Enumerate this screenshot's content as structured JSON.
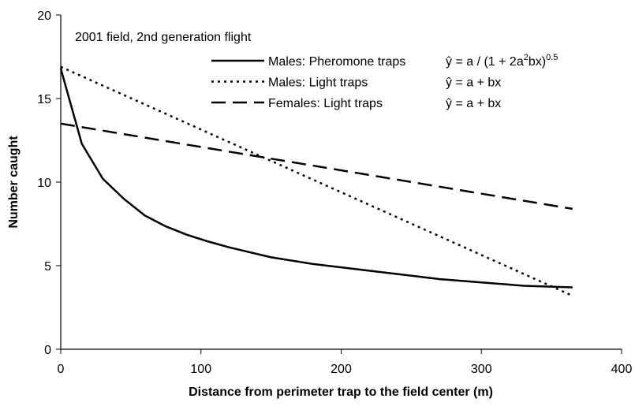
{
  "chart_data": {
    "type": "line",
    "subtitle": "2001 field, 2nd generation flight",
    "x_label": "Distance from perimeter trap to the field center (m)",
    "y_label": "Number caught",
    "xlim": [
      0,
      400
    ],
    "xticks": [
      0,
      100,
      200,
      300,
      400
    ],
    "ylim": [
      0,
      20
    ],
    "yticks": [
      0,
      5,
      10,
      15,
      20
    ],
    "grid": false,
    "series": [
      {
        "name": "Males: Pheromone traps",
        "color": "#000000",
        "dash": "none",
        "equation": [
          {
            "text": "ŷ = a / (1 + 2a"
          },
          {
            "text": "2",
            "sup": true
          },
          {
            "text": "bx)"
          },
          {
            "text": "0.5",
            "sup": true
          }
        ],
        "x": [
          0,
          15,
          30,
          45,
          60,
          75,
          90,
          105,
          120,
          150,
          180,
          210,
          240,
          270,
          300,
          330,
          365
        ],
        "values": [
          16.8,
          12.3,
          10.2,
          9.0,
          8.0,
          7.35,
          6.85,
          6.45,
          6.1,
          5.5,
          5.1,
          4.8,
          4.5,
          4.2,
          4.0,
          3.8,
          3.7
        ]
      },
      {
        "name": "Males: Light traps",
        "color": "#000000",
        "dash": "3,5",
        "equation": [
          {
            "text": "ŷ = a + bx"
          }
        ],
        "x": [
          0,
          365
        ],
        "values": [
          16.9,
          3.2
        ]
      },
      {
        "name": "Females: Light traps",
        "color": "#000000",
        "dash": "18,9",
        "equation": [
          {
            "text": "ŷ = a + bx"
          }
        ],
        "x": [
          0,
          365
        ],
        "values": [
          13.5,
          8.4
        ]
      }
    ]
  }
}
